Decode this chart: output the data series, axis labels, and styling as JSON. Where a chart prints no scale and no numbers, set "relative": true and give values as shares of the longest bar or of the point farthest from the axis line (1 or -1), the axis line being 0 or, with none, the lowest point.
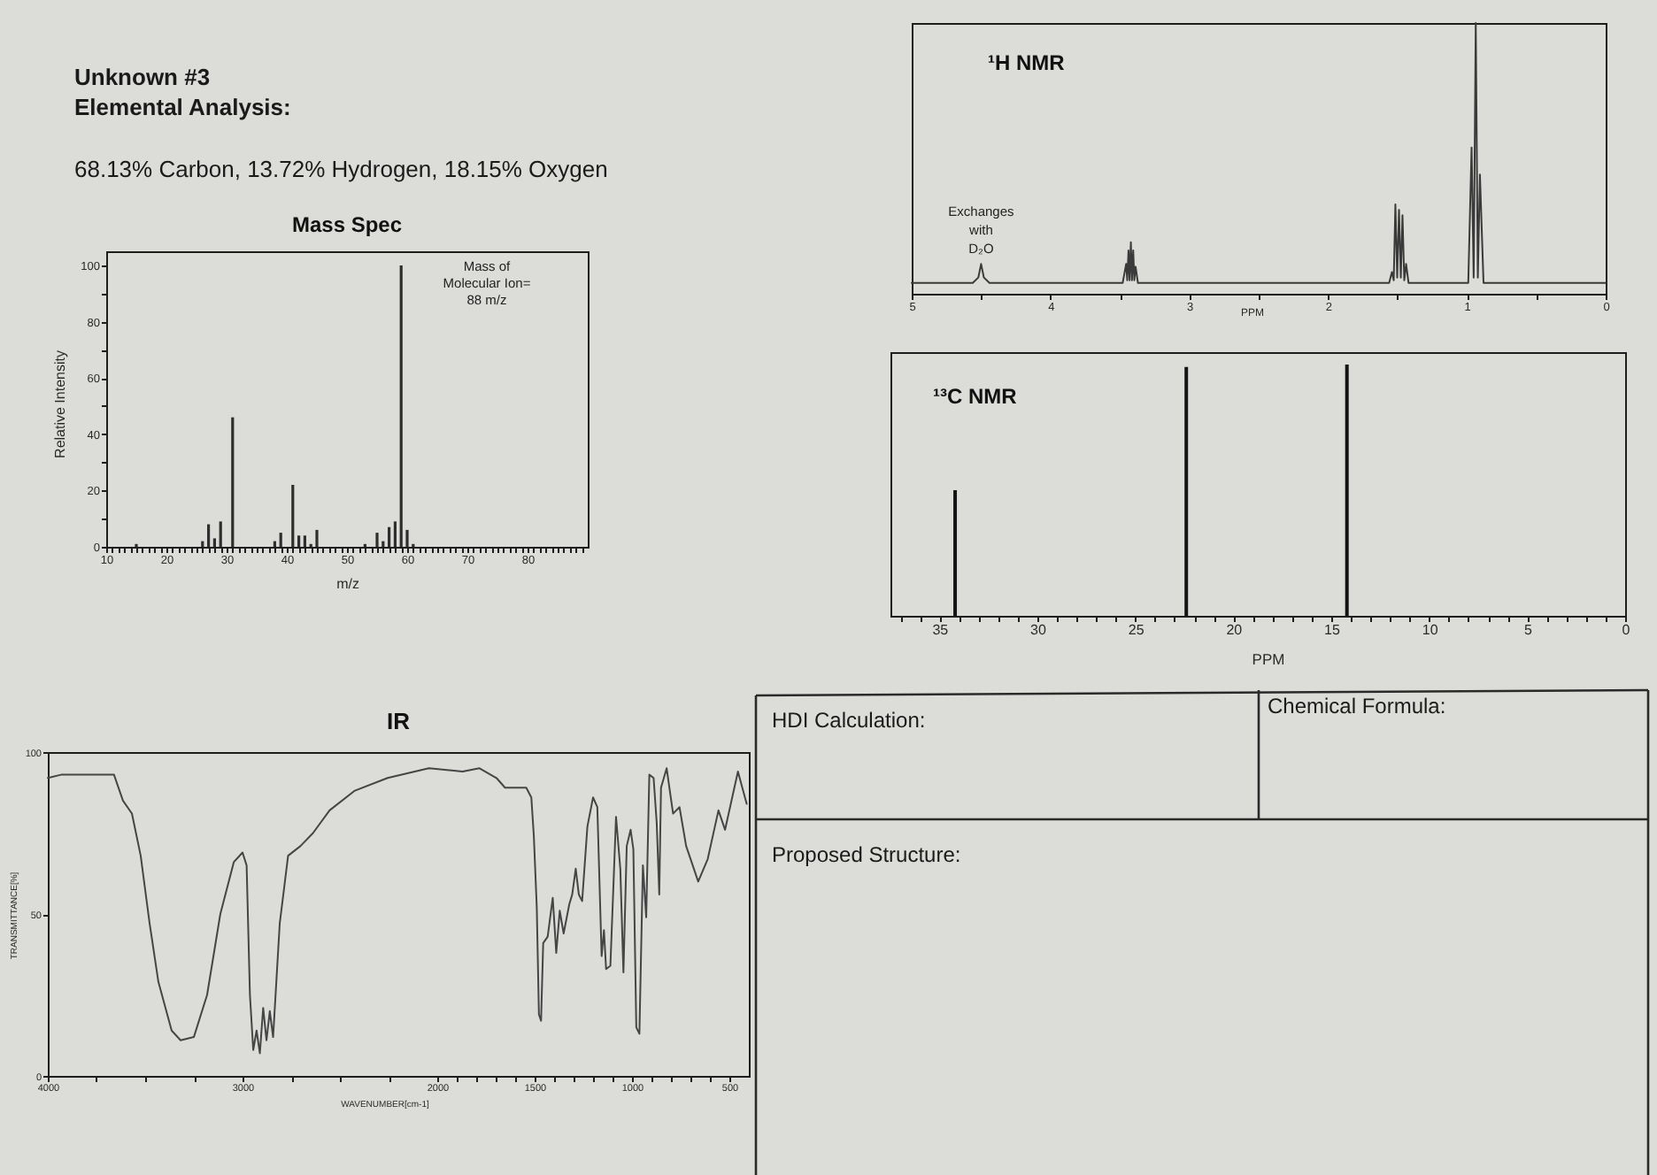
{
  "chart_data": [
    {
      "type": "other",
      "title": "Unknown #3",
      "subtitle": "Elemental Analysis:",
      "annotations": [
        "68.13% Carbon, 13.72% Hydrogen, 18.15% Oxygen"
      ]
    },
    {
      "type": "bar",
      "title": "Mass Spec",
      "xlabel": "m/z",
      "ylabel": "Relative Intensity",
      "color": "#2e2e2e",
      "x": [
        15,
        26,
        27,
        28,
        29,
        31,
        38,
        39,
        41,
        42,
        43,
        44,
        45,
        53,
        55,
        56,
        57,
        58,
        59,
        60,
        61
      ],
      "values": [
        1,
        2,
        8,
        3,
        9,
        46,
        2,
        5,
        22,
        4,
        4,
        1,
        6,
        1,
        5,
        2,
        7,
        9,
        100,
        6,
        1
      ],
      "xlim": [
        10,
        90
      ],
      "ylim": [
        0,
        105
      ],
      "xticks": [
        10,
        {
          "value": 11,
          "label": null
        },
        {
          "value": 12,
          "label": null
        },
        {
          "value": 13,
          "label": null
        },
        {
          "value": 14,
          "label": null
        },
        {
          "value": 15,
          "label": null
        },
        {
          "value": 16,
          "label": null
        },
        {
          "value": 17,
          "label": null
        },
        {
          "value": 18,
          "label": null
        },
        {
          "value": 19,
          "label": null
        },
        20,
        {
          "value": 21,
          "label": null
        },
        {
          "value": 22,
          "label": null
        },
        {
          "value": 23,
          "label": null
        },
        {
          "value": 24,
          "label": null
        },
        {
          "value": 25,
          "label": null
        },
        {
          "value": 26,
          "label": null
        },
        {
          "value": 27,
          "label": null
        },
        {
          "value": 28,
          "label": null
        },
        {
          "value": 29,
          "label": null
        },
        30,
        {
          "value": 31,
          "label": null
        },
        {
          "value": 32,
          "label": null
        },
        {
          "value": 33,
          "label": null
        },
        {
          "value": 34,
          "label": null
        },
        {
          "value": 35,
          "label": null
        },
        {
          "value": 36,
          "label": null
        },
        {
          "value": 37,
          "label": null
        },
        {
          "value": 38,
          "label": null
        },
        {
          "value": 39,
          "label": null
        },
        40,
        {
          "value": 41,
          "label": null
        },
        {
          "value": 42,
          "label": null
        },
        {
          "value": 43,
          "label": null
        },
        {
          "value": 44,
          "label": null
        },
        {
          "value": 45,
          "label": null
        },
        {
          "value": 46,
          "label": null
        },
        {
          "value": 47,
          "label": null
        },
        {
          "value": 48,
          "label": null
        },
        {
          "value": 49,
          "label": null
        },
        50,
        {
          "value": 51,
          "label": null
        },
        {
          "value": 52,
          "label": null
        },
        {
          "value": 53,
          "label": null
        },
        {
          "value": 54,
          "label": null
        },
        {
          "value": 55,
          "label": null
        },
        {
          "value": 56,
          "label": null
        },
        {
          "value": 57,
          "label": null
        },
        {
          "value": 58,
          "label": null
        },
        {
          "value": 59,
          "label": null
        },
        60,
        {
          "value": 61,
          "label": null
        },
        {
          "value": 62,
          "label": null
        },
        {
          "value": 63,
          "label": null
        },
        {
          "value": 64,
          "label": null
        },
        {
          "value": 65,
          "label": null
        },
        {
          "value": 66,
          "label": null
        },
        {
          "value": 67,
          "label": null
        },
        {
          "value": 68,
          "label": null
        },
        {
          "value": 69,
          "label": null
        },
        70,
        {
          "value": 71,
          "label": null
        },
        {
          "value": 72,
          "label": null
        },
        {
          "value": 73,
          "label": null
        },
        {
          "value": 74,
          "label": null
        },
        {
          "value": 75,
          "label": null
        },
        {
          "value": 76,
          "label": null
        },
        {
          "value": 77,
          "label": null
        },
        {
          "value": 78,
          "label": null
        },
        {
          "value": 79,
          "label": null
        },
        80,
        {
          "value": 81,
          "label": null
        },
        {
          "value": 82,
          "label": null
        },
        {
          "value": 83,
          "label": null
        },
        {
          "value": 84,
          "label": null
        },
        {
          "value": 85,
          "label": null
        },
        {
          "value": 86,
          "label": null
        },
        {
          "value": 87,
          "label": null
        },
        {
          "value": 88,
          "label": null
        },
        {
          "value": 89,
          "label": null
        }
      ],
      "yticks": [
        0,
        {
          "value": 10,
          "label": null
        },
        20,
        {
          "value": 30,
          "label": null
        },
        40,
        {
          "value": 50,
          "label": null
        },
        60,
        {
          "value": 70,
          "label": null
        },
        80,
        {
          "value": 90,
          "label": null
        },
        100
      ],
      "annotations": [
        "Mass of\nMolecular Ion=\n88 m/z"
      ]
    },
    {
      "type": "line",
      "title": "¹H NMR",
      "xlabel": "PPM",
      "relative": true,
      "color": "#3a3a3a",
      "x": [
        5,
        4.56,
        4.52,
        4.5,
        4.48,
        4.44,
        3.48,
        3.455,
        3.447,
        3.438,
        3.43,
        3.421,
        3.413,
        3.404,
        3.396,
        3.387,
        3.37,
        1.56,
        1.54,
        1.527,
        1.515,
        1.502,
        1.489,
        1.476,
        1.464,
        1.451,
        1.438,
        1.42,
        0.99,
        0.966,
        0.951,
        0.936,
        0.921,
        0.906,
        0.88,
        0
      ],
      "values": [
        0.04,
        0.04,
        0.06,
        0.11,
        0.06,
        0.04,
        0.04,
        0.11,
        0.05,
        0.16,
        0.05,
        0.19,
        0.05,
        0.16,
        0.05,
        0.1,
        0.04,
        0.04,
        0.08,
        0.05,
        0.33,
        0.06,
        0.31,
        0.06,
        0.29,
        0.05,
        0.11,
        0.04,
        0.04,
        0.54,
        0.06,
        1,
        0.06,
        0.44,
        0.04,
        0.04
      ],
      "xlim": [
        5,
        0
      ],
      "xticks": [
        5,
        {
          "value": 4.5,
          "label": null
        },
        4,
        {
          "value": 3.5,
          "label": null
        },
        3,
        {
          "value": 2.5,
          "label": null
        },
        2,
        {
          "value": 1.5,
          "label": null
        },
        1,
        {
          "value": 0.5,
          "label": null
        },
        0
      ],
      "annotations": [
        {
          "text": "Exchanges\nwith\nD₂O",
          "x": 4.5,
          "y": 0.11
        }
      ]
    },
    {
      "type": "bar",
      "title": "¹³C NMR",
      "xlabel": "PPM",
      "relative": true,
      "color": "#141414",
      "x": [
        34.2,
        22.4,
        14.2
      ],
      "values": [
        0.5,
        0.99,
        1
      ],
      "xlim": [
        37.5,
        0
      ],
      "xticks": [
        {
          "value": 37,
          "label": null
        },
        {
          "value": 36,
          "label": null
        },
        35,
        {
          "value": 34,
          "label": null
        },
        {
          "value": 33,
          "label": null
        },
        {
          "value": 32,
          "label": null
        },
        {
          "value": 31,
          "label": null
        },
        30,
        {
          "value": 29,
          "label": null
        },
        {
          "value": 28,
          "label": null
        },
        {
          "value": 27,
          "label": null
        },
        {
          "value": 26,
          "label": null
        },
        25,
        {
          "value": 24,
          "label": null
        },
        {
          "value": 23,
          "label": null
        },
        {
          "value": 22,
          "label": null
        },
        {
          "value": 21,
          "label": null
        },
        20,
        {
          "value": 19,
          "label": null
        },
        {
          "value": 18,
          "label": null
        },
        {
          "value": 17,
          "label": null
        },
        {
          "value": 16,
          "label": null
        },
        15,
        {
          "value": 14,
          "label": null
        },
        {
          "value": 13,
          "label": null
        },
        {
          "value": 12,
          "label": null
        },
        {
          "value": 11,
          "label": null
        },
        10,
        {
          "value": 9,
          "label": null
        },
        {
          "value": 8,
          "label": null
        },
        {
          "value": 7,
          "label": null
        },
        {
          "value": 6,
          "label": null
        },
        5,
        {
          "value": 4,
          "label": null
        },
        {
          "value": 3,
          "label": null
        },
        {
          "value": 2,
          "label": null
        },
        {
          "value": 1,
          "label": null
        },
        0
      ]
    },
    {
      "type": "line",
      "title": "IR",
      "xlabel": "WAVENUMBER[cm-1]",
      "ylabel": "TRANSMITTANCE[%]",
      "color": "#454545",
      "x": [
        4000,
        3932,
        3705,
        3660,
        3614,
        3568,
        3523,
        3477,
        3432,
        3364,
        3318,
        3250,
        3182,
        3114,
        3045,
        3000,
        2979,
        2962,
        2945,
        2928,
        2911,
        2894,
        2877,
        2860,
        2843,
        2809,
        2766,
        2702,
        2638,
        2553,
        2426,
        2255,
        2043,
        1870,
        1783,
        1696,
        1652,
        1598,
        1543,
        1517,
        1504,
        1489,
        1478,
        1467,
        1456,
        1433,
        1407,
        1389,
        1371,
        1351,
        1322,
        1307,
        1289,
        1273,
        1256,
        1229,
        1200,
        1178,
        1156,
        1144,
        1133,
        1111,
        1082,
        1060,
        1044,
        1027,
        1007,
        993,
        978,
        962,
        944,
        927,
        911,
        889,
        873,
        860,
        851,
        822,
        789,
        756,
        722,
        660,
        611,
        556,
        522,
        456,
        411
      ],
      "values": [
        92,
        93,
        93,
        93,
        85,
        81,
        68,
        47,
        29,
        14,
        11,
        12,
        25,
        50,
        66,
        69,
        65,
        25,
        8,
        14,
        7,
        21,
        11,
        20,
        12,
        47,
        68,
        71,
        75,
        82,
        88,
        92,
        95,
        94,
        95,
        92,
        89,
        89,
        89,
        86,
        74,
        52,
        19,
        17,
        41,
        43,
        55,
        38,
        51,
        44,
        53,
        56,
        64,
        56,
        54,
        77,
        86,
        83,
        37,
        45,
        33,
        34,
        80,
        64,
        32,
        71,
        76,
        70,
        15,
        13,
        65,
        49,
        93,
        92,
        78,
        56,
        89,
        95,
        81,
        83,
        71,
        60,
        67,
        82,
        76,
        94,
        84
      ],
      "xlim": [
        4000,
        400
      ],
      "ylim": [
        0,
        100
      ],
      "xticks": [
        4000,
        {
          "value": 3750,
          "label": null
        },
        {
          "value": 3500,
          "label": null
        },
        {
          "value": 3250,
          "label": null
        },
        3000,
        {
          "value": 2750,
          "label": null
        },
        {
          "value": 2500,
          "label": null
        },
        {
          "value": 2250,
          "label": null
        },
        2000,
        {
          "value": 1900,
          "label": null
        },
        {
          "value": 1800,
          "label": null
        },
        {
          "value": 1700,
          "label": null
        },
        {
          "value": 1600,
          "label": null
        },
        1500,
        {
          "value": 1400,
          "label": null
        },
        {
          "value": 1300,
          "label": null
        },
        {
          "value": 1200,
          "label": null
        },
        {
          "value": 1100,
          "label": null
        },
        1000,
        {
          "value": 900,
          "label": null
        },
        {
          "value": 800,
          "label": null
        },
        {
          "value": 700,
          "label": null
        },
        {
          "value": 600,
          "label": null
        },
        500
      ],
      "yticks": [
        0,
        50,
        100
      ]
    },
    {
      "type": "other",
      "annotations": [
        "HDI Calculation:",
        "Chemical Formula:",
        "Proposed Structure:"
      ]
    }
  ]
}
